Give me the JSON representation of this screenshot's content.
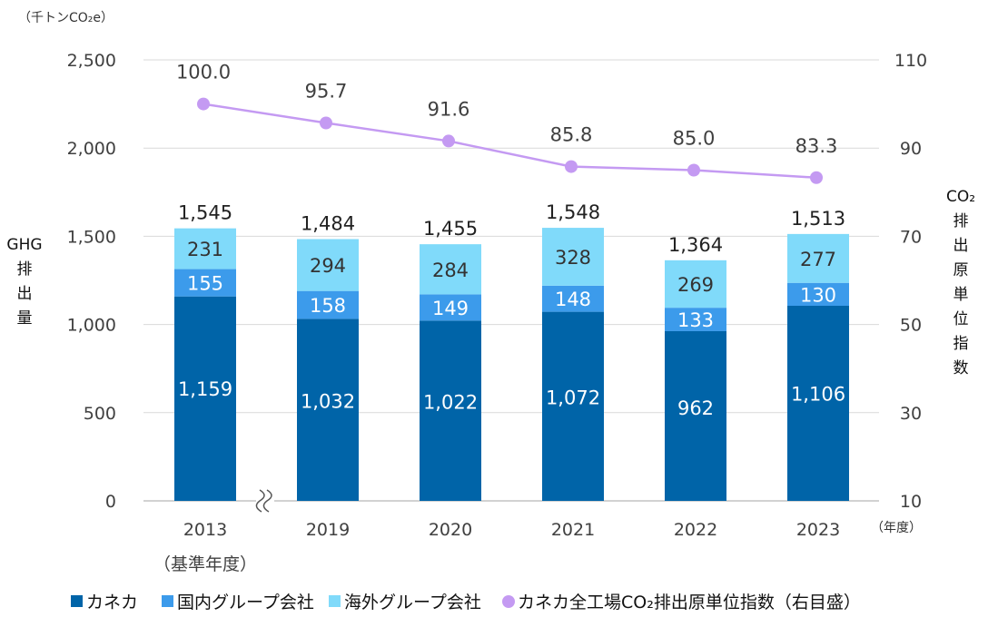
{
  "chart_data": {
    "type": "bar",
    "stacked": true,
    "y_unit": "（千トンCO₂e）",
    "ylabel": [
      "GHG",
      "排",
      "出",
      "量"
    ],
    "y2label": [
      "CO₂",
      "排",
      "出",
      "原",
      "単",
      "位",
      "指",
      "数"
    ],
    "x_unit": "（年度）",
    "categories": [
      "2013",
      "2019",
      "2020",
      "2021",
      "2022",
      "2023"
    ],
    "category_sublabels": [
      "（基準年度）",
      "",
      "",
      "",
      "",
      ""
    ],
    "ylim": [
      0,
      2500
    ],
    "yticks": [
      0,
      500,
      1000,
      1500,
      2000,
      2500
    ],
    "ytick_labels": [
      "0",
      "500",
      "1,000",
      "1,500",
      "2,000",
      "2,500"
    ],
    "y2lim": [
      10,
      110
    ],
    "y2ticks": [
      10,
      30,
      50,
      70,
      90,
      110
    ],
    "series": [
      {
        "name": "カネカ",
        "color": "#0064A8",
        "values": [
          1159,
          1032,
          1022,
          1072,
          962,
          1106
        ],
        "labels": [
          "1,159",
          "1,032",
          "1,022",
          "1,072",
          "962",
          "1,106"
        ]
      },
      {
        "name": "国内グループ会社",
        "color": "#3C9BEB",
        "values": [
          155,
          158,
          149,
          148,
          133,
          130
        ],
        "labels": [
          "155",
          "158",
          "149",
          "148",
          "133",
          "130"
        ]
      },
      {
        "name": "海外グループ会社",
        "color": "#80DAFA",
        "values": [
          231,
          294,
          284,
          328,
          269,
          277
        ],
        "labels": [
          "231",
          "294",
          "284",
          "328",
          "269",
          "277"
        ],
        "label_color": "#333333"
      }
    ],
    "totals": [
      1545,
      1484,
      1455,
      1548,
      1364,
      1513
    ],
    "total_labels": [
      "1,545",
      "1,484",
      "1,455",
      "1,548",
      "1,364",
      "1,513"
    ],
    "line_series": {
      "name": "カネカ全工場CO₂排出原単位指数（右目盛）",
      "color": "#C49AF2",
      "axis": "right",
      "values": [
        100.0,
        95.7,
        91.6,
        85.8,
        85.0,
        83.3
      ],
      "labels": [
        "100.0",
        "95.7",
        "91.6",
        "85.8",
        "85.0",
        "83.3"
      ]
    },
    "axis_break_after_category": 0,
    "legend_position": "bottom",
    "grid": true
  }
}
